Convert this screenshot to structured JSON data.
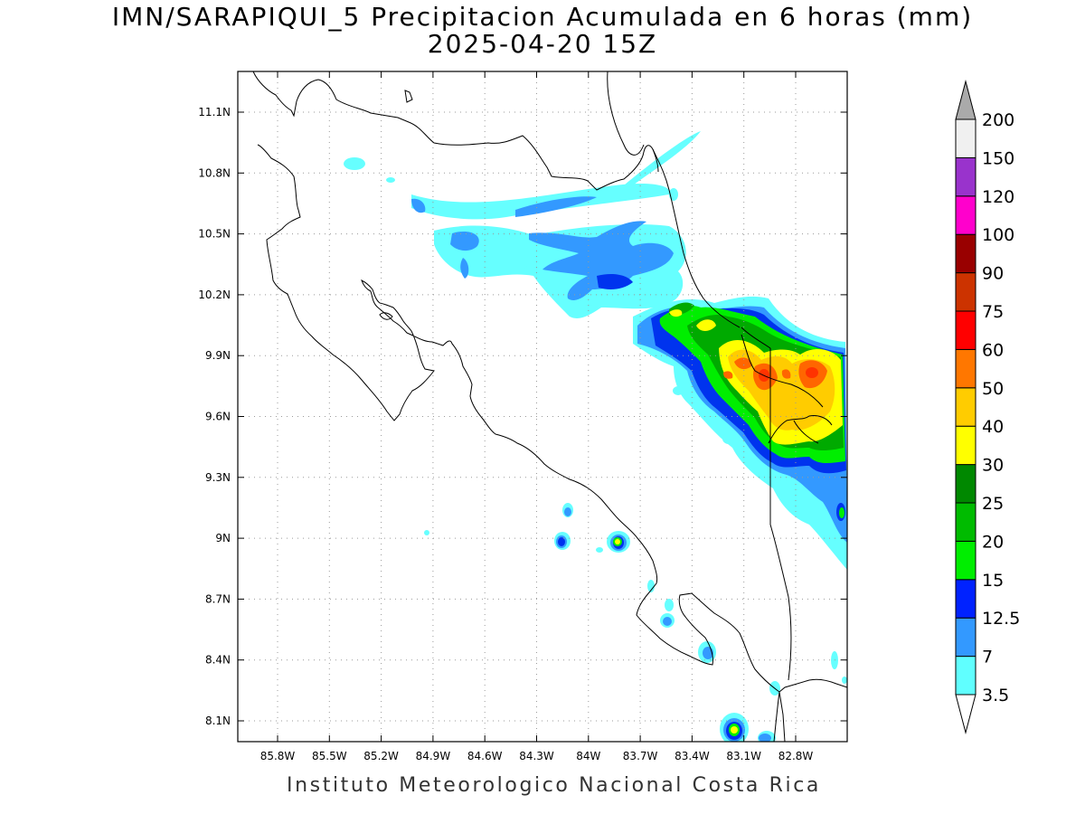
{
  "title": {
    "line1": "IMN/SARAPIQUI_5 Precipitacion Acumulada en 6 horas (mm)",
    "line2": "2025-04-20 15Z"
  },
  "footer": "Instituto Meteorologico Nacional Costa Rica",
  "axes": {
    "lon_ticks": [
      "85.8W",
      "85.5W",
      "85.2W",
      "84.9W",
      "84.6W",
      "84.3W",
      "84W",
      "83.7W",
      "83.4W",
      "83.1W",
      "82.8W"
    ],
    "lat_ticks": [
      "11.1N",
      "10.8N",
      "10.5N",
      "10.2N",
      "9.9N",
      "9.6N",
      "9.3N",
      "9N",
      "8.7N",
      "8.4N",
      "8.1N"
    ],
    "lon_range": [
      -85.96,
      -82.64
    ],
    "lat_range": [
      8.0,
      11.3
    ],
    "grid": "dotted"
  },
  "colorbar": {
    "levels": [
      "3.5",
      "7",
      "12.5",
      "15",
      "20",
      "25",
      "30",
      "40",
      "50",
      "60",
      "75",
      "90",
      "100",
      "120",
      "150",
      "200"
    ],
    "colors": [
      "#60ffff",
      "#3399ff",
      "#0022ff",
      "#00ee00",
      "#00bb00",
      "#008800",
      "#ffff00",
      "#ffcc00",
      "#ff7700",
      "#ff0000",
      "#cc3300",
      "#990000",
      "#ff00cc",
      "#9933cc",
      "#f0f0f0",
      "#aaaaaa"
    ]
  },
  "chart_data": {
    "type": "heatmap",
    "variable": "Precipitacion Acumulada en 6 horas (mm)",
    "unit": "mm",
    "valid_time": "2025-04-20 15Z",
    "rain_areas": [
      {
        "lon": -83.1,
        "lat": 9.8,
        "max_mm": 50
      },
      {
        "lon": -82.9,
        "lat": 9.75,
        "max_mm": 50
      },
      {
        "lon": -83.05,
        "lat": 9.55,
        "max_mm": 40
      },
      {
        "lon": -83.5,
        "lat": 10.1,
        "max_mm": 30
      },
      {
        "lon": -83.85,
        "lat": 8.99,
        "max_mm": 30
      },
      {
        "lon": -84.12,
        "lat": 8.99,
        "max_mm": 25
      },
      {
        "lon": -83.07,
        "lat": 8.09,
        "max_mm": 30
      },
      {
        "lon": -83.5,
        "lat": 8.43,
        "max_mm": 25
      },
      {
        "lon": -83.88,
        "lat": 10.36,
        "max_mm": 7
      },
      {
        "lon": -84.6,
        "lat": 10.47,
        "max_mm": 7
      },
      {
        "lon": -84.82,
        "lat": 10.65,
        "max_mm": 7
      }
    ]
  }
}
